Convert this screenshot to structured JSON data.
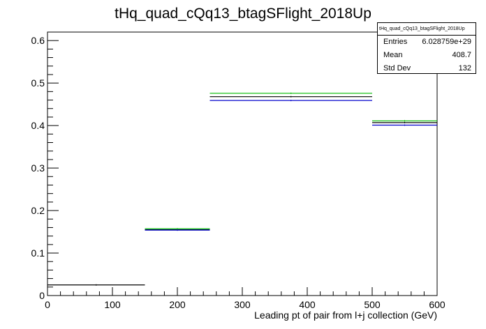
{
  "chart_data": {
    "type": "histogram",
    "title": "tHq_quad_cQq13_btagSFlight_2018Up",
    "xlabel": "Leading pt of pair from l+j collection (GeV)",
    "ylabel": "",
    "xlim": [
      0,
      600
    ],
    "ylim": [
      0,
      0.62
    ],
    "x_ticks": [
      0,
      100,
      200,
      300,
      400,
      500,
      600
    ],
    "y_ticks": [
      0,
      0.1,
      0.2,
      0.3,
      0.4,
      0.5,
      0.6
    ],
    "x_tick_labels": [
      "0",
      "100",
      "200",
      "300",
      "400",
      "500",
      "600"
    ],
    "y_tick_labels": [
      "0",
      "0.1",
      "0.2",
      "0.3",
      "0.4",
      "0.5",
      "0.6"
    ],
    "grid": false,
    "bin_edges": [
      0,
      150,
      250,
      500,
      600
    ],
    "series": [
      {
        "color": "#000000",
        "values": [
          0.025,
          0.155,
          0.468,
          0.407
        ]
      },
      {
        "color": "#00bb00",
        "values": [
          null,
          0.157,
          0.476,
          0.411
        ]
      },
      {
        "color": "#0000cc",
        "values": [
          null,
          0.154,
          0.459,
          0.401
        ]
      }
    ],
    "stats": {
      "title": "tHq_quad_cQq13_btagSFlight_2018Up",
      "rows": [
        {
          "label": "Entries",
          "value": "6.028759e+29"
        },
        {
          "label": "Mean",
          "value": "408.7"
        },
        {
          "label": "Std Dev",
          "value": "132"
        }
      ]
    }
  }
}
